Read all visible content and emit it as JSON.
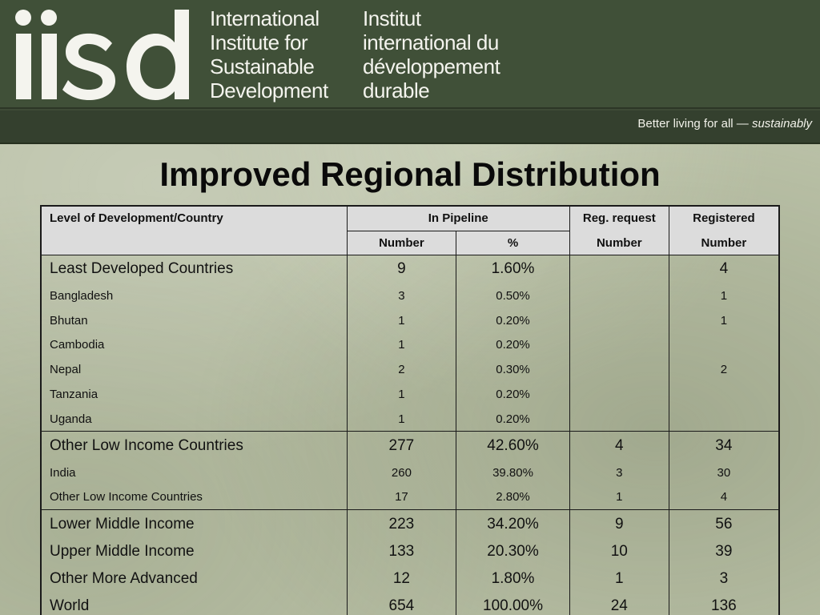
{
  "header": {
    "logo_text": "iisd",
    "name_en": [
      "International",
      "Institute for",
      "Sustainable",
      "Development"
    ],
    "name_fr": [
      "Institut",
      "international du",
      "développement",
      "durable"
    ],
    "tagline": "Better living for all",
    "tagline_dash": " — ",
    "tagline_em": "sustainably"
  },
  "title": "Improved Regional Distribution",
  "table": {
    "headers": {
      "level": "Level of Development/Country",
      "pipeline": "In Pipeline",
      "pipeline_number": "Number",
      "pipeline_pct": "%",
      "reg_request": "Reg. request",
      "reg_request_number": "Number",
      "registered": "Registered",
      "registered_number": "Number"
    },
    "groups": [
      {
        "rows": [
          {
            "name": "Least Developed Countries",
            "number": "9",
            "pct": "1.60%",
            "reg_request": "",
            "registered": "4",
            "size": "big"
          },
          {
            "name": "Bangladesh",
            "number": "3",
            "pct": "0.50%",
            "reg_request": "",
            "registered": "1",
            "size": "small"
          },
          {
            "name": "Bhutan",
            "number": "1",
            "pct": "0.20%",
            "reg_request": "",
            "registered": "1",
            "size": "small"
          },
          {
            "name": "Cambodia",
            "number": "1",
            "pct": "0.20%",
            "reg_request": "",
            "registered": "",
            "size": "small"
          },
          {
            "name": "Nepal",
            "number": "2",
            "pct": "0.30%",
            "reg_request": "",
            "registered": "2",
            "size": "small"
          },
          {
            "name": "Tanzania",
            "number": "1",
            "pct": "0.20%",
            "reg_request": "",
            "registered": "",
            "size": "small"
          },
          {
            "name": "Uganda",
            "number": "1",
            "pct": "0.20%",
            "reg_request": "",
            "registered": "",
            "size": "small"
          }
        ]
      },
      {
        "rows": [
          {
            "name": "Other Low Income Countries",
            "number": "277",
            "pct": "42.60%",
            "reg_request": "4",
            "registered": "34",
            "size": "big"
          },
          {
            "name": "India",
            "number": "260",
            "pct": "39.80%",
            "reg_request": "3",
            "registered": "30",
            "size": "small"
          },
          {
            "name": "Other Low Income Countries",
            "number": "17",
            "pct": "2.80%",
            "reg_request": "1",
            "registered": "4",
            "size": "small"
          }
        ]
      },
      {
        "rows": [
          {
            "name": "Lower Middle Income",
            "number": "223",
            "pct": "34.20%",
            "reg_request": "9",
            "registered": "56",
            "size": "big"
          },
          {
            "name": "Upper Middle Income",
            "number": "133",
            "pct": "20.30%",
            "reg_request": "10",
            "registered": "39",
            "size": "big"
          },
          {
            "name": "Other More Advanced",
            "number": "12",
            "pct": "1.80%",
            "reg_request": "1",
            "registered": "3",
            "size": "big"
          },
          {
            "name": "World",
            "number": "654",
            "pct": "100.00%",
            "reg_request": "24",
            "registered": "136",
            "size": "big"
          }
        ]
      }
    ]
  }
}
